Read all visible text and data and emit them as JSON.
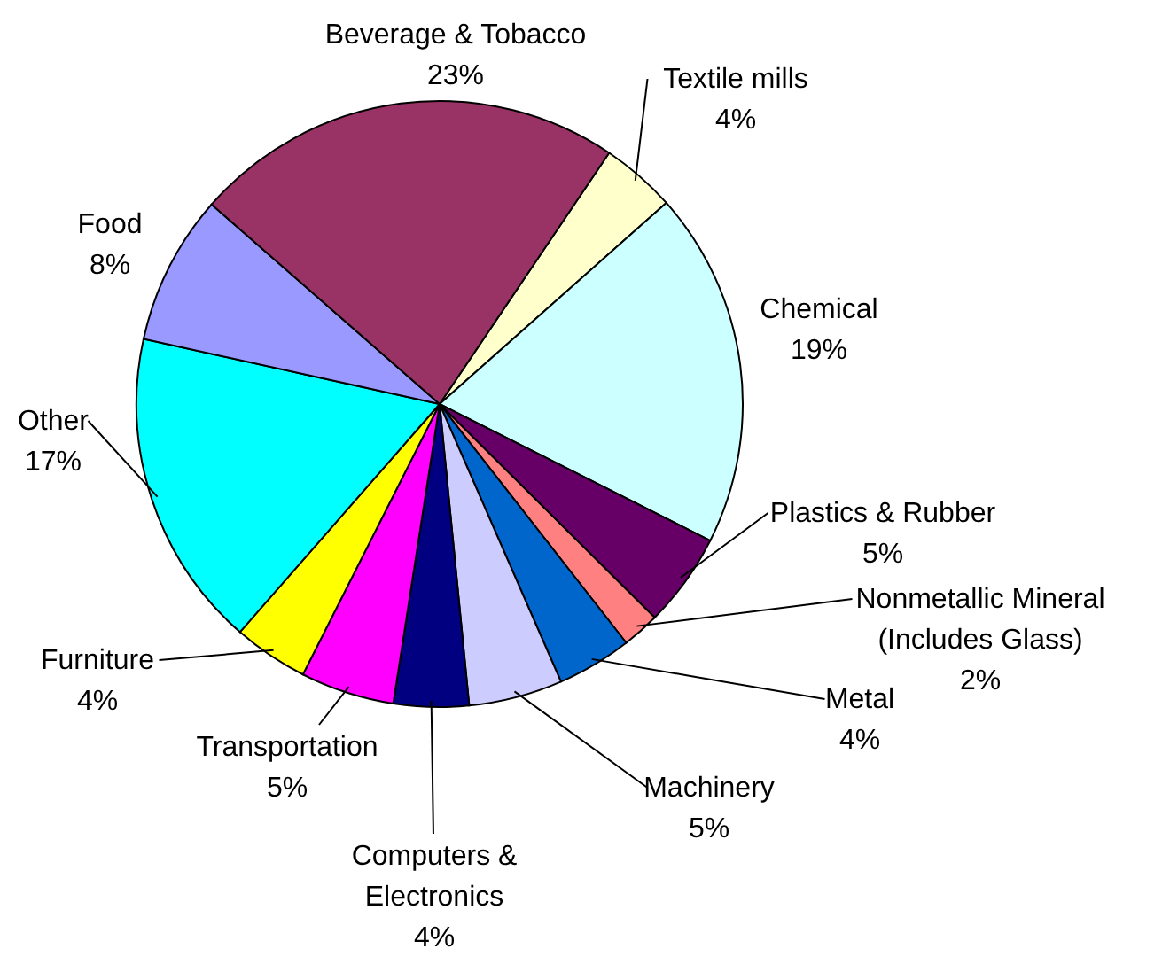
{
  "chart_data": {
    "type": "pie",
    "categories": [
      "Textile mills",
      "Chemical",
      "Plastics & Rubber",
      "Nonmetallic Mineral (Includes Glass)",
      "Metal",
      "Machinery",
      "Computers & Electronics",
      "Transportation",
      "Furniture",
      "Other",
      "Food",
      "Beverage & Tobacco"
    ],
    "values": [
      4,
      19,
      5,
      2,
      4,
      5,
      4,
      5,
      4,
      17,
      8,
      23
    ],
    "value_labels": [
      "4%",
      "19%",
      "5%",
      "2%",
      "4%",
      "5%",
      "4%",
      "5%",
      "4%",
      "17%",
      "8%",
      "23%"
    ],
    "colors": [
      "#ffffcc",
      "#ccffff",
      "#660066",
      "#ff8080",
      "#0066cc",
      "#ccccff",
      "#000080",
      "#ff00ff",
      "#ffff00",
      "#00ffff",
      "#9999ff",
      "#993366"
    ],
    "legend": false
  }
}
